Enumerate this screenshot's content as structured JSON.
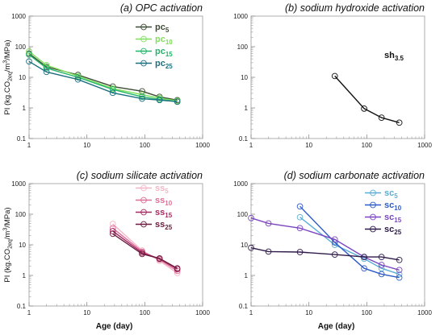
{
  "chart_data": [
    {
      "type": "line",
      "title": "(a) OPC activation",
      "ylabel": "PI (kg.CO2eq/m3/MPa)",
      "xlabel": "",
      "xscale": "log",
      "yscale": "log",
      "xlim": [
        1,
        1000
      ],
      "ylim": [
        0.1,
        1000
      ],
      "xticks": [
        "1",
        "10",
        "100",
        "1000"
      ],
      "yticks": [
        "0.1",
        "1",
        "10",
        "100",
        "1000"
      ],
      "legend": "top-right",
      "series": [
        {
          "name": "pc5",
          "base": "pc",
          "sub": "5",
          "color": "#3d4a35",
          "x": [
            1,
            2,
            7,
            28,
            90,
            180,
            365
          ],
          "y": [
            60,
            22,
            12,
            5,
            3.5,
            2.3,
            1.8
          ]
        },
        {
          "name": "pc10",
          "base": "pc",
          "sub": "10",
          "color": "#7fe05c",
          "x": [
            1,
            2,
            7,
            28,
            90,
            180,
            365
          ],
          "y": [
            70,
            25,
            11,
            4.3,
            2.7,
            2.1,
            1.7
          ]
        },
        {
          "name": "pc15",
          "base": "pc",
          "sub": "15",
          "color": "#22b56a",
          "x": [
            1,
            2,
            7,
            28,
            90,
            180,
            365
          ],
          "y": [
            55,
            20,
            10,
            4,
            2.3,
            1.9,
            1.6
          ]
        },
        {
          "name": "pc25",
          "base": "pc",
          "sub": "25",
          "color": "#1c6f80",
          "x": [
            1,
            2,
            7,
            28,
            90,
            180,
            365
          ],
          "y": [
            33,
            15,
            8.5,
            3.1,
            2,
            1.8,
            1.6
          ]
        }
      ]
    },
    {
      "type": "line",
      "title": "(b) sodium hydroxide activation",
      "ylabel": "",
      "xlabel": "",
      "xscale": "log",
      "yscale": "log",
      "xlim": [
        1,
        1000
      ],
      "ylim": [
        0.1,
        1000
      ],
      "xticks": [
        "1",
        "10",
        "100",
        "1000"
      ],
      "yticks": [
        "0.1",
        "1",
        "10",
        "100",
        "1000"
      ],
      "legend": "top-right",
      "series": [
        {
          "name": "sh3.5",
          "base": "sh",
          "sub": "3.5",
          "color": "#111111",
          "x": [
            28,
            90,
            180,
            365
          ],
          "y": [
            11,
            0.95,
            0.48,
            0.33
          ]
        }
      ]
    },
    {
      "type": "line",
      "title": "(c) sodium silicate activation",
      "ylabel": "PI (kg.CO2eq/m3/MPa)",
      "xlabel": "Age (day)",
      "xscale": "log",
      "yscale": "log",
      "xlim": [
        1,
        1000
      ],
      "ylim": [
        0.1,
        1000
      ],
      "xticks": [
        "1",
        "10",
        "100",
        "1000"
      ],
      "yticks": [
        "0.1",
        "1",
        "10",
        "100",
        "1000"
      ],
      "legend": "top-right",
      "series": [
        {
          "name": "ss5",
          "base": "ss",
          "sub": "5",
          "color": "#f4b6c6",
          "x": [
            28,
            90,
            180,
            365
          ],
          "y": [
            48,
            6.5,
            3,
            1.2
          ]
        },
        {
          "name": "ss10",
          "base": "ss",
          "sub": "10",
          "color": "#dc6f98",
          "x": [
            28,
            90,
            180,
            365
          ],
          "y": [
            35,
            6,
            3.3,
            1.4
          ]
        },
        {
          "name": "ss15",
          "base": "ss",
          "sub": "15",
          "color": "#a52a63",
          "x": [
            28,
            90,
            180,
            365
          ],
          "y": [
            28,
            5.5,
            3.5,
            1.6
          ]
        },
        {
          "name": "ss25",
          "base": "ss",
          "sub": "25",
          "color": "#6b1a3d",
          "x": [
            28,
            90,
            180,
            365
          ],
          "y": [
            23,
            5,
            3.6,
            1.7
          ]
        }
      ]
    },
    {
      "type": "line",
      "title": "(d) sodium carbonate activation",
      "ylabel": "",
      "xlabel": "Age (day)",
      "xscale": "log",
      "yscale": "log",
      "xlim": [
        1,
        1000
      ],
      "ylim": [
        0.1,
        1000
      ],
      "xticks": [
        "1",
        "10",
        "100",
        "1000"
      ],
      "yticks": [
        "0.1",
        "1",
        "10",
        "100",
        "1000"
      ],
      "legend": "top-right",
      "series": [
        {
          "name": "sc5",
          "base": "sc",
          "sub": "5",
          "color": "#5aaed6",
          "x": [
            7,
            28,
            90,
            180,
            365
          ],
          "y": [
            80,
            10,
            3.5,
            1.7,
            1.1
          ]
        },
        {
          "name": "sc10",
          "base": "sc",
          "sub": "10",
          "color": "#2d5bc7",
          "x": [
            7,
            28,
            90,
            180,
            365
          ],
          "y": [
            180,
            12,
            1.7,
            1.1,
            0.85
          ]
        },
        {
          "name": "sc15",
          "base": "sc",
          "sub": "15",
          "color": "#7b45c0",
          "x": [
            1,
            2,
            7,
            28,
            90,
            180,
            365
          ],
          "y": [
            75,
            50,
            35,
            15,
            4,
            2.2,
            1.5
          ]
        },
        {
          "name": "sc25",
          "base": "sc",
          "sub": "25",
          "color": "#2e1a4a",
          "x": [
            1,
            2,
            7,
            28,
            90,
            180,
            365
          ],
          "y": [
            8,
            6,
            5.8,
            4.8,
            4,
            4,
            3.2
          ]
        }
      ]
    }
  ]
}
